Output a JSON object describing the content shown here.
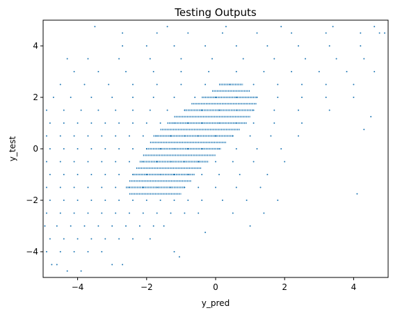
{
  "chart_data": {
    "type": "scatter",
    "title": "Testing Outputs",
    "xlabel": "y_pred",
    "ylabel": "y_test",
    "xlim": [
      -5,
      5
    ],
    "ylim": [
      -5,
      5
    ],
    "xticks": [
      -4,
      -2,
      0,
      2,
      4
    ],
    "yticks": [
      -4,
      -2,
      0,
      2,
      4
    ],
    "xtick_labels": [
      "−4",
      "−2",
      "0",
      "2",
      "4"
    ],
    "ytick_labels": [
      "−4",
      "−2",
      "0",
      "2",
      "4"
    ],
    "grid": false,
    "marker_color": "#1f77b4",
    "y_step": 0.25,
    "points": [
      {
        "x": -4.75,
        "y": -4.5
      },
      {
        "x": -4.6,
        "y": -4.5
      },
      {
        "x": -4.3,
        "y": -4.75
      },
      {
        "x": -3.9,
        "y": -4.75
      },
      {
        "x": -3.0,
        "y": -4.5
      },
      {
        "x": -2.7,
        "y": -4.5
      },
      {
        "x": -1.2,
        "y": -4.0
      },
      {
        "x": -1.05,
        "y": -4.2
      },
      {
        "x": -4.9,
        "y": -4.0
      },
      {
        "x": -4.5,
        "y": -4.0
      },
      {
        "x": -4.1,
        "y": -4.0
      },
      {
        "x": -3.7,
        "y": -4.0
      },
      {
        "x": -3.3,
        "y": -4.0
      },
      {
        "x": -4.8,
        "y": -3.5
      },
      {
        "x": -4.4,
        "y": -3.5
      },
      {
        "x": -4.0,
        "y": -3.5
      },
      {
        "x": -3.6,
        "y": -3.5
      },
      {
        "x": -3.2,
        "y": -3.5
      },
      {
        "x": -2.8,
        "y": -3.5
      },
      {
        "x": -2.4,
        "y": -3.5
      },
      {
        "x": -1.9,
        "y": -3.5
      },
      {
        "x": -4.95,
        "y": -3.0
      },
      {
        "x": -4.6,
        "y": -3.0
      },
      {
        "x": -4.2,
        "y": -3.0
      },
      {
        "x": -3.8,
        "y": -3.0
      },
      {
        "x": -3.4,
        "y": -3.0
      },
      {
        "x": -3.0,
        "y": -3.0
      },
      {
        "x": -2.6,
        "y": -3.0
      },
      {
        "x": -2.2,
        "y": -3.0
      },
      {
        "x": -1.8,
        "y": -3.0
      },
      {
        "x": -1.5,
        "y": -3.0
      },
      {
        "x": 1.0,
        "y": -3.0
      },
      {
        "x": -0.3,
        "y": -3.25
      },
      {
        "x": -4.9,
        "y": -2.5
      },
      {
        "x": -4.5,
        "y": -2.5
      },
      {
        "x": -4.1,
        "y": -2.5
      },
      {
        "x": -3.7,
        "y": -2.5
      },
      {
        "x": -3.3,
        "y": -2.5
      },
      {
        "x": -2.9,
        "y": -2.5
      },
      {
        "x": -2.5,
        "y": -2.5
      },
      {
        "x": -2.1,
        "y": -2.5
      },
      {
        "x": -1.7,
        "y": -2.5
      },
      {
        "x": -1.3,
        "y": -2.5
      },
      {
        "x": -0.9,
        "y": -2.5
      },
      {
        "x": -0.5,
        "y": -2.5
      },
      {
        "x": 0.5,
        "y": -2.5
      },
      {
        "x": 1.4,
        "y": -2.5
      },
      {
        "x": -4.8,
        "y": -2.0
      },
      {
        "x": -4.4,
        "y": -2.0
      },
      {
        "x": -4.0,
        "y": -2.0
      },
      {
        "x": -3.6,
        "y": -2.0
      },
      {
        "x": -3.2,
        "y": -2.0
      },
      {
        "x": -2.8,
        "y": -2.0
      },
      {
        "x": -2.4,
        "y": -2.0
      },
      {
        "x": -2.0,
        "y": -2.0
      },
      {
        "x": -1.6,
        "y": -2.0
      },
      {
        "x": -1.2,
        "y": -2.0
      },
      {
        "x": -0.8,
        "y": -2.0
      },
      {
        "x": -0.4,
        "y": -2.0
      },
      {
        "x": 0.2,
        "y": -2.0
      },
      {
        "x": 0.9,
        "y": -2.0
      },
      {
        "x": 1.8,
        "y": -2.0
      },
      {
        "x": -4.9,
        "y": -1.5
      },
      {
        "x": -4.5,
        "y": -1.5
      },
      {
        "x": -4.1,
        "y": -1.5
      },
      {
        "x": -3.7,
        "y": -1.5
      },
      {
        "x": -3.3,
        "y": -1.5
      },
      {
        "x": -2.9,
        "y": -1.5
      },
      {
        "x": -2.5,
        "y": -1.5
      },
      {
        "x": -2.1,
        "y": -1.5
      },
      {
        "x": -1.7,
        "y": -1.5
      },
      {
        "x": -1.3,
        "y": -1.5
      },
      {
        "x": -0.9,
        "y": -1.5
      },
      {
        "x": -0.5,
        "y": -1.5
      },
      {
        "x": 0.0,
        "y": -1.5
      },
      {
        "x": 0.6,
        "y": -1.5
      },
      {
        "x": 1.3,
        "y": -1.5
      },
      {
        "x": 4.1,
        "y": -1.75
      },
      {
        "x": -4.8,
        "y": -1.0
      },
      {
        "x": -4.4,
        "y": -1.0
      },
      {
        "x": -4.0,
        "y": -1.0
      },
      {
        "x": -3.6,
        "y": -1.0
      },
      {
        "x": -3.2,
        "y": -1.0
      },
      {
        "x": -2.8,
        "y": -1.0
      },
      {
        "x": -2.4,
        "y": -1.0
      },
      {
        "x": -2.0,
        "y": -1.0
      },
      {
        "x": -1.6,
        "y": -1.0
      },
      {
        "x": -1.2,
        "y": -1.0
      },
      {
        "x": -0.8,
        "y": -1.0
      },
      {
        "x": -0.4,
        "y": -1.0
      },
      {
        "x": 0.1,
        "y": -1.0
      },
      {
        "x": 0.7,
        "y": -1.0
      },
      {
        "x": 1.5,
        "y": -1.0
      },
      {
        "x": -4.9,
        "y": -0.5
      },
      {
        "x": -4.5,
        "y": -0.5
      },
      {
        "x": -4.1,
        "y": -0.5
      },
      {
        "x": -3.7,
        "y": -0.5
      },
      {
        "x": -3.3,
        "y": -0.5
      },
      {
        "x": -2.9,
        "y": -0.5
      },
      {
        "x": -2.5,
        "y": -0.5
      },
      {
        "x": -2.1,
        "y": -0.5
      },
      {
        "x": -1.7,
        "y": -0.5
      },
      {
        "x": -1.3,
        "y": -0.5
      },
      {
        "x": -0.9,
        "y": -0.5
      },
      {
        "x": -0.5,
        "y": -0.5
      },
      {
        "x": 0.0,
        "y": -0.5
      },
      {
        "x": 0.5,
        "y": -0.5
      },
      {
        "x": 1.1,
        "y": -0.5
      },
      {
        "x": 2.0,
        "y": -0.5
      },
      {
        "x": -4.8,
        "y": 0.0
      },
      {
        "x": -4.4,
        "y": 0.0
      },
      {
        "x": -4.0,
        "y": 0.0
      },
      {
        "x": -3.6,
        "y": 0.0
      },
      {
        "x": -3.2,
        "y": 0.0
      },
      {
        "x": -2.8,
        "y": 0.0
      },
      {
        "x": -2.4,
        "y": 0.0
      },
      {
        "x": -2.0,
        "y": 0.0
      },
      {
        "x": -1.6,
        "y": 0.0
      },
      {
        "x": -1.2,
        "y": 0.0
      },
      {
        "x": -0.8,
        "y": 0.0
      },
      {
        "x": -0.4,
        "y": 0.0
      },
      {
        "x": 0.1,
        "y": 0.0
      },
      {
        "x": 0.6,
        "y": 0.0
      },
      {
        "x": 1.2,
        "y": 0.0
      },
      {
        "x": 1.9,
        "y": 0.0
      },
      {
        "x": -4.9,
        "y": 0.5
      },
      {
        "x": -4.5,
        "y": 0.5
      },
      {
        "x": -4.1,
        "y": 0.5
      },
      {
        "x": -3.7,
        "y": 0.5
      },
      {
        "x": -3.3,
        "y": 0.5
      },
      {
        "x": -2.9,
        "y": 0.5
      },
      {
        "x": -2.5,
        "y": 0.5
      },
      {
        "x": -2.1,
        "y": 0.5
      },
      {
        "x": -1.7,
        "y": 0.5
      },
      {
        "x": -1.3,
        "y": 0.5
      },
      {
        "x": -0.9,
        "y": 0.5
      },
      {
        "x": -0.5,
        "y": 0.5
      },
      {
        "x": 0.0,
        "y": 0.5
      },
      {
        "x": 0.5,
        "y": 0.5
      },
      {
        "x": 1.0,
        "y": 0.5
      },
      {
        "x": 1.6,
        "y": 0.5
      },
      {
        "x": 2.4,
        "y": 0.5
      },
      {
        "x": -4.8,
        "y": 1.0
      },
      {
        "x": -4.4,
        "y": 1.0
      },
      {
        "x": -4.0,
        "y": 1.0
      },
      {
        "x": -3.6,
        "y": 1.0
      },
      {
        "x": -3.2,
        "y": 1.0
      },
      {
        "x": -2.8,
        "y": 1.0
      },
      {
        "x": -2.4,
        "y": 1.0
      },
      {
        "x": -2.0,
        "y": 1.0
      },
      {
        "x": -1.6,
        "y": 1.0
      },
      {
        "x": -1.2,
        "y": 1.0
      },
      {
        "x": -0.8,
        "y": 1.0
      },
      {
        "x": -0.4,
        "y": 1.0
      },
      {
        "x": 0.1,
        "y": 1.0
      },
      {
        "x": 0.6,
        "y": 1.0
      },
      {
        "x": 1.1,
        "y": 1.0
      },
      {
        "x": 1.7,
        "y": 1.0
      },
      {
        "x": 2.5,
        "y": 1.0
      },
      {
        "x": 4.5,
        "y": 1.25
      },
      {
        "x": 4.3,
        "y": 0.75
      },
      {
        "x": -4.9,
        "y": 1.5
      },
      {
        "x": -4.4,
        "y": 1.5
      },
      {
        "x": -3.9,
        "y": 1.5
      },
      {
        "x": -3.4,
        "y": 1.5
      },
      {
        "x": -2.9,
        "y": 1.5
      },
      {
        "x": -2.4,
        "y": 1.5
      },
      {
        "x": -1.9,
        "y": 1.5
      },
      {
        "x": -1.4,
        "y": 1.5
      },
      {
        "x": -0.9,
        "y": 1.5
      },
      {
        "x": -0.4,
        "y": 1.5
      },
      {
        "x": 0.1,
        "y": 1.5
      },
      {
        "x": 0.6,
        "y": 1.5
      },
      {
        "x": 1.1,
        "y": 1.5
      },
      {
        "x": 1.7,
        "y": 1.5
      },
      {
        "x": 2.4,
        "y": 1.5
      },
      {
        "x": 3.3,
        "y": 1.5
      },
      {
        "x": -4.7,
        "y": 2.0
      },
      {
        "x": -4.2,
        "y": 2.0
      },
      {
        "x": -3.6,
        "y": 2.0
      },
      {
        "x": -3.0,
        "y": 2.0
      },
      {
        "x": -2.4,
        "y": 2.0
      },
      {
        "x": -1.8,
        "y": 2.0
      },
      {
        "x": -1.2,
        "y": 2.0
      },
      {
        "x": -0.6,
        "y": 2.0
      },
      {
        "x": 0.0,
        "y": 2.0
      },
      {
        "x": 0.6,
        "y": 2.0
      },
      {
        "x": 1.2,
        "y": 2.0
      },
      {
        "x": 1.8,
        "y": 2.0
      },
      {
        "x": 2.5,
        "y": 2.0
      },
      {
        "x": 3.2,
        "y": 2.0
      },
      {
        "x": 4.0,
        "y": 2.0
      },
      {
        "x": -4.5,
        "y": 2.5
      },
      {
        "x": -3.8,
        "y": 2.5
      },
      {
        "x": -3.1,
        "y": 2.5
      },
      {
        "x": -2.4,
        "y": 2.5
      },
      {
        "x": -1.7,
        "y": 2.5
      },
      {
        "x": -1.0,
        "y": 2.5
      },
      {
        "x": -0.3,
        "y": 2.5
      },
      {
        "x": 0.4,
        "y": 2.5
      },
      {
        "x": 1.1,
        "y": 2.5
      },
      {
        "x": 1.8,
        "y": 2.5
      },
      {
        "x": 2.5,
        "y": 2.5
      },
      {
        "x": 3.2,
        "y": 2.5
      },
      {
        "x": 4.0,
        "y": 2.5
      },
      {
        "x": -4.1,
        "y": 3.0
      },
      {
        "x": -3.4,
        "y": 3.0
      },
      {
        "x": -2.6,
        "y": 3.0
      },
      {
        "x": -1.8,
        "y": 3.0
      },
      {
        "x": -1.0,
        "y": 3.0
      },
      {
        "x": -0.2,
        "y": 3.0
      },
      {
        "x": 0.6,
        "y": 3.0
      },
      {
        "x": 1.4,
        "y": 3.0
      },
      {
        "x": 2.2,
        "y": 3.0
      },
      {
        "x": 3.0,
        "y": 3.0
      },
      {
        "x": 3.8,
        "y": 3.0
      },
      {
        "x": 4.6,
        "y": 3.0
      },
      {
        "x": -4.3,
        "y": 3.5
      },
      {
        "x": -3.7,
        "y": 3.5
      },
      {
        "x": -2.8,
        "y": 3.5
      },
      {
        "x": -1.9,
        "y": 3.5
      },
      {
        "x": -1.0,
        "y": 3.5
      },
      {
        "x": -0.1,
        "y": 3.5
      },
      {
        "x": 0.8,
        "y": 3.5
      },
      {
        "x": 1.7,
        "y": 3.5
      },
      {
        "x": 2.6,
        "y": 3.5
      },
      {
        "x": 3.5,
        "y": 3.5
      },
      {
        "x": 4.3,
        "y": 3.5
      },
      {
        "x": -2.7,
        "y": 4.0
      },
      {
        "x": -2.0,
        "y": 4.0
      },
      {
        "x": -1.2,
        "y": 4.0
      },
      {
        "x": -0.3,
        "y": 4.0
      },
      {
        "x": 0.6,
        "y": 4.0
      },
      {
        "x": 1.5,
        "y": 4.0
      },
      {
        "x": 2.4,
        "y": 4.0
      },
      {
        "x": 3.3,
        "y": 4.0
      },
      {
        "x": 4.2,
        "y": 4.0
      },
      {
        "x": -2.7,
        "y": 4.5
      },
      {
        "x": -1.7,
        "y": 4.5
      },
      {
        "x": -0.8,
        "y": 4.5
      },
      {
        "x": 0.2,
        "y": 4.5
      },
      {
        "x": 1.2,
        "y": 4.5
      },
      {
        "x": 2.2,
        "y": 4.5
      },
      {
        "x": 3.2,
        "y": 4.5
      },
      {
        "x": 4.2,
        "y": 4.5
      },
      {
        "x": 4.75,
        "y": 4.5
      },
      {
        "x": 4.9,
        "y": 4.5
      },
      {
        "x": -3.5,
        "y": 4.75
      },
      {
        "x": -1.4,
        "y": 4.75
      },
      {
        "x": 0.3,
        "y": 4.75
      },
      {
        "x": 1.9,
        "y": 4.75
      },
      {
        "x": 3.4,
        "y": 4.75
      },
      {
        "x": 4.6,
        "y": 4.75
      }
    ],
    "bands": [
      {
        "y": -1.75,
        "x_from": -2.5,
        "x_to": -1.0
      },
      {
        "y": -1.5,
        "x_from": -2.6,
        "x_to": -0.9
      },
      {
        "y": -1.25,
        "x_from": -2.5,
        "x_to": -0.7
      },
      {
        "y": -1.0,
        "x_from": -2.4,
        "x_to": -0.6
      },
      {
        "y": -0.75,
        "x_from": -2.3,
        "x_to": -0.4
      },
      {
        "y": -0.5,
        "x_from": -2.2,
        "x_to": -0.2
      },
      {
        "y": -0.25,
        "x_from": -2.1,
        "x_to": 0.0
      },
      {
        "y": 0.0,
        "x_from": -2.0,
        "x_to": 0.15
      },
      {
        "y": 0.25,
        "x_from": -1.9,
        "x_to": 0.3
      },
      {
        "y": 0.5,
        "x_from": -1.8,
        "x_to": 0.5
      },
      {
        "y": 0.75,
        "x_from": -1.6,
        "x_to": 0.7
      },
      {
        "y": 1.0,
        "x_from": -1.4,
        "x_to": 0.9
      },
      {
        "y": 1.25,
        "x_from": -1.2,
        "x_to": 1.0
      },
      {
        "y": 1.5,
        "x_from": -0.9,
        "x_to": 1.1
      },
      {
        "y": 1.75,
        "x_from": -0.7,
        "x_to": 1.2
      },
      {
        "y": 2.0,
        "x_from": -0.4,
        "x_to": 1.2
      },
      {
        "y": 2.25,
        "x_from": -0.1,
        "x_to": 1.0
      },
      {
        "y": 2.5,
        "x_from": 0.1,
        "x_to": 0.8
      }
    ]
  }
}
